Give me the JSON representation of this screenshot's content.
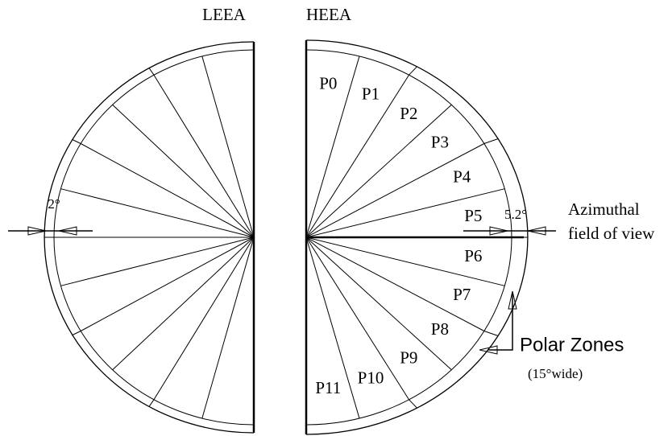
{
  "headers": {
    "left": "LEEA",
    "right": "HEEA"
  },
  "sectors": [
    "P0",
    "P1",
    "P2",
    "P3",
    "P4",
    "P5",
    "P6",
    "P7",
    "P8",
    "P9",
    "P10",
    "P11"
  ],
  "annotations": {
    "left_fov": "2°",
    "right_fov": "5.2°",
    "azimuthal": [
      "Azimuthal",
      "field of view"
    ],
    "polar_zones": "Polar Zones",
    "polar_width": "(15°wide)"
  }
}
